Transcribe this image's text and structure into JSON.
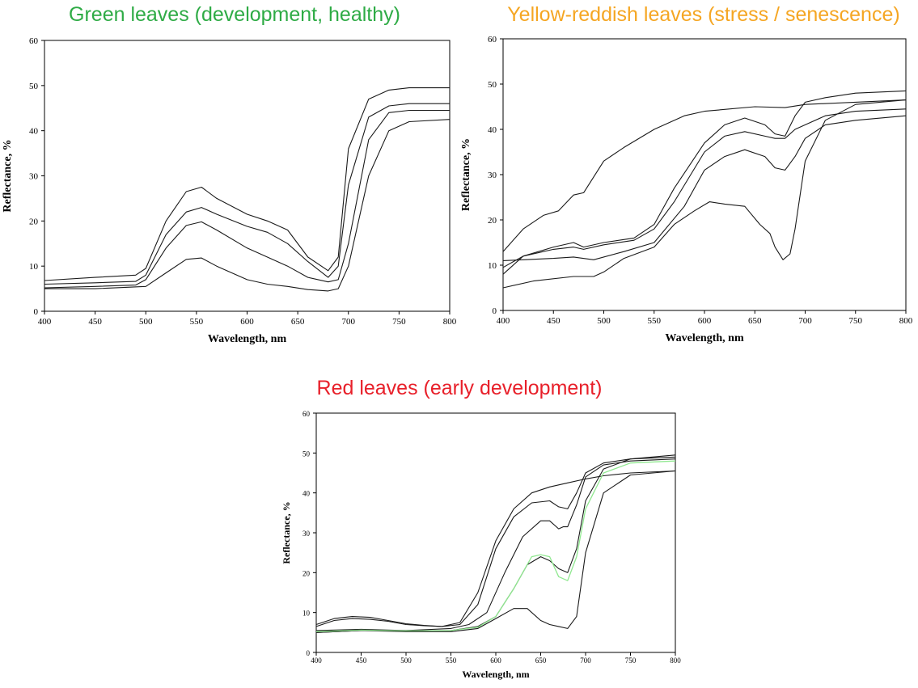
{
  "colors": {
    "green_title": "#2eab45",
    "yellow_title": "#f5a623",
    "red_title": "#e8202a",
    "curve": "#1a1a1a",
    "green_curve": "#90e890"
  },
  "chart_data": [
    {
      "type": "line",
      "title": "Green leaves (development, healthy)",
      "xlabel": "Wavelength, nm",
      "ylabel": "Reflectance, %",
      "xlim": [
        400,
        800
      ],
      "ylim": [
        0,
        60
      ],
      "xticks": [
        "400",
        "450",
        "500",
        "550",
        "600",
        "650",
        "700",
        "750",
        "800"
      ],
      "yticks": [
        "0",
        "10",
        "20",
        "30",
        "40",
        "50",
        "60"
      ],
      "grid": false,
      "series": [
        {
          "x": [
            400,
            450,
            490,
            500,
            520,
            540,
            555,
            570,
            600,
            620,
            640,
            660,
            680,
            690,
            700,
            720,
            740,
            760,
            800
          ],
          "y": [
            6.8,
            7.5,
            8,
            9.5,
            20,
            26.5,
            27.5,
            25,
            21.5,
            20,
            18,
            12,
            9,
            12,
            36,
            47,
            49,
            49.5,
            49.5
          ]
        },
        {
          "x": [
            400,
            450,
            490,
            500,
            520,
            540,
            555,
            570,
            600,
            620,
            640,
            660,
            680,
            690,
            700,
            720,
            740,
            760,
            800
          ],
          "y": [
            6,
            6.3,
            6.6,
            8,
            17,
            22,
            23,
            21.5,
            18.8,
            17.5,
            15,
            11,
            7.5,
            10,
            28,
            43,
            45.5,
            46,
            46
          ]
        },
        {
          "x": [
            400,
            450,
            490,
            500,
            520,
            540,
            555,
            570,
            600,
            620,
            640,
            660,
            680,
            690,
            700,
            720,
            740,
            760,
            800
          ],
          "y": [
            5.2,
            5.5,
            5.8,
            7,
            14,
            19,
            19.8,
            18,
            14,
            12,
            10,
            7.5,
            6.5,
            7,
            15,
            38,
            44,
            44.5,
            44.5
          ]
        },
        {
          "x": [
            400,
            450,
            500,
            520,
            540,
            555,
            570,
            600,
            620,
            640,
            660,
            680,
            690,
            700,
            720,
            740,
            760,
            800
          ],
          "y": [
            5,
            5,
            5.5,
            8.5,
            11.5,
            11.8,
            10,
            7,
            6,
            5.5,
            4.8,
            4.5,
            5,
            10,
            30,
            40,
            42,
            42.5
          ]
        }
      ]
    },
    {
      "type": "line",
      "title": "Yellow-reddish leaves (stress / senescence)",
      "xlabel": "Wavelength, nm",
      "ylabel": "Reflectance, %",
      "xlim": [
        400,
        800
      ],
      "ylim": [
        0,
        60
      ],
      "xticks": [
        "400",
        "450",
        "500",
        "550",
        "600",
        "650",
        "700",
        "750",
        "800"
      ],
      "yticks": [
        "0",
        "10",
        "20",
        "30",
        "40",
        "50",
        "60"
      ],
      "grid": false,
      "series": [
        {
          "x": [
            400,
            420,
            440,
            455,
            470,
            480,
            500,
            520,
            550,
            580,
            600,
            650,
            680,
            700,
            750,
            800
          ],
          "y": [
            13,
            18,
            21,
            22,
            25.5,
            26,
            33,
            36,
            40,
            43,
            44,
            45,
            44.8,
            45.5,
            46,
            46.5
          ]
        },
        {
          "x": [
            400,
            420,
            450,
            470,
            480,
            500,
            530,
            550,
            570,
            600,
            620,
            640,
            660,
            670,
            680,
            690,
            700,
            720,
            750,
            800
          ],
          "y": [
            8,
            12,
            14,
            15,
            14,
            15,
            16,
            19,
            27,
            37,
            41,
            42.5,
            41,
            39,
            38.5,
            43,
            46,
            47,
            48,
            48.5
          ]
        },
        {
          "x": [
            400,
            420,
            450,
            470,
            480,
            500,
            530,
            550,
            570,
            600,
            620,
            640,
            660,
            670,
            680,
            690,
            700,
            720,
            750,
            800
          ],
          "y": [
            9.5,
            12,
            13.5,
            14,
            13.5,
            14.5,
            15.5,
            18,
            24,
            35,
            38.5,
            39.5,
            38.5,
            38,
            38,
            40,
            41,
            43,
            44,
            44.5
          ]
        },
        {
          "x": [
            400,
            420,
            450,
            470,
            490,
            520,
            550,
            580,
            600,
            620,
            640,
            660,
            670,
            680,
            690,
            700,
            720,
            750,
            800
          ],
          "y": [
            11,
            11.2,
            11.5,
            11.8,
            11.2,
            13,
            15,
            23,
            31,
            34,
            35.5,
            34,
            31.5,
            31,
            34,
            38,
            41,
            42,
            43
          ]
        },
        {
          "x": [
            400,
            430,
            470,
            490,
            500,
            520,
            550,
            570,
            590,
            605,
            620,
            640,
            655,
            665,
            670,
            678,
            685,
            690,
            700,
            720,
            750,
            800
          ],
          "y": [
            5,
            6.5,
            7.5,
            7.5,
            8.5,
            11.5,
            14,
            19,
            22,
            24,
            23.5,
            23,
            19,
            17,
            14,
            11.2,
            12.5,
            18,
            33,
            42,
            45.5,
            46.5
          ]
        }
      ]
    },
    {
      "type": "line",
      "title": "Red leaves (early development)",
      "xlabel": "Wavelength, nm",
      "ylabel": "Reflectance, %",
      "xlim": [
        400,
        800
      ],
      "ylim": [
        0,
        60
      ],
      "xticks": [
        "400",
        "450",
        "500",
        "550",
        "600",
        "650",
        "700",
        "750",
        "800"
      ],
      "yticks": [
        "0",
        "10",
        "20",
        "30",
        "40",
        "50",
        "60"
      ],
      "grid": false,
      "series": [
        {
          "x": [
            400,
            420,
            440,
            460,
            480,
            500,
            520,
            540,
            560,
            580,
            600,
            620,
            640,
            660,
            680,
            700,
            720,
            750,
            800
          ],
          "y": [
            7,
            8.5,
            9,
            8.8,
            8,
            7.2,
            6.8,
            6.5,
            7.5,
            15,
            28,
            36,
            40,
            41.5,
            42.5,
            43.5,
            44.3,
            45,
            45.5
          ]
        },
        {
          "x": [
            400,
            420,
            440,
            460,
            480,
            500,
            520,
            540,
            560,
            580,
            600,
            620,
            640,
            660,
            670,
            680,
            690,
            700,
            720,
            750,
            800
          ],
          "y": [
            6.5,
            8,
            8.5,
            8.3,
            7.8,
            7,
            6.7,
            6.5,
            7,
            12,
            26,
            34,
            37.5,
            38,
            36.5,
            36,
            40,
            45,
            47.5,
            48.5,
            49.5
          ]
        },
        {
          "x": [
            400,
            450,
            500,
            550,
            570,
            590,
            610,
            630,
            650,
            660,
            670,
            675,
            680,
            690,
            700,
            720,
            750,
            800
          ],
          "y": [
            5.5,
            5.8,
            5.5,
            6,
            7,
            10,
            20,
            29,
            33,
            33,
            31,
            31.5,
            31.5,
            37,
            44,
            47,
            48,
            48.5
          ]
        },
        {
          "x": [
            400,
            450,
            500,
            550,
            580,
            600,
            620,
            635,
            650,
            660,
            670,
            675,
            680,
            690,
            700,
            720,
            750,
            800
          ],
          "y": [
            5,
            5.5,
            5.5,
            5.5,
            6.5,
            9,
            16,
            22,
            24,
            23,
            21,
            20.5,
            20,
            26,
            38,
            46,
            48.5,
            49
          ]
        },
        {
          "x": [
            400,
            450,
            500,
            550,
            580,
            600,
            620,
            635,
            650,
            660,
            670,
            680,
            690,
            700,
            720,
            750,
            800
          ],
          "y": [
            5,
            5.5,
            5.2,
            5.2,
            6,
            8.5,
            11,
            11,
            8,
            7,
            6.5,
            6,
            9,
            25,
            40,
            44.5,
            45.5
          ]
        },
        {
          "x": [
            400,
            450,
            500,
            550,
            580,
            600,
            620,
            640,
            650,
            660,
            670,
            680,
            690,
            700,
            720,
            750,
            800
          ],
          "y": [
            5.2,
            5.6,
            5.4,
            5.5,
            6.3,
            9,
            16,
            24,
            24.5,
            24,
            19,
            18,
            24,
            36,
            45,
            47.5,
            48
          ]
        }
      ]
    }
  ]
}
